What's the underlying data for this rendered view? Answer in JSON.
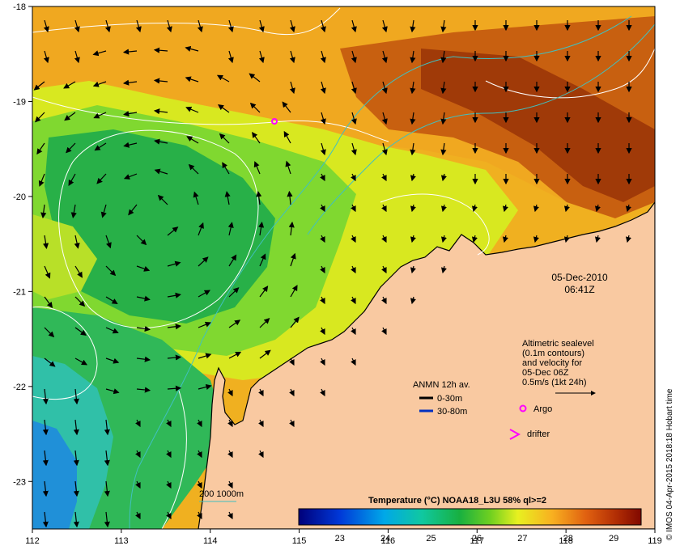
{
  "map": {
    "lon_ticks": [
      "112",
      "113",
      "114",
      "115",
      "116",
      "117",
      "118",
      "119"
    ],
    "lat_ticks": [
      "-18",
      "-19",
      "-20",
      "-21",
      "-22",
      "-23"
    ],
    "lon_range": [
      112,
      119
    ],
    "lat_range": [
      -23.5,
      -18
    ],
    "colors": {
      "land": "#f9c9a1",
      "coast": "#000000",
      "sealevel_contour": "#ffffff",
      "isobath": "#40c0c0"
    }
  },
  "datetime": {
    "date": "05-Dec-2010",
    "time": "06:41Z"
  },
  "altimetric": {
    "line1": "Altimetric sealevel",
    "line2": "(0.1m contours)",
    "line3": "and velocity for",
    "line4": "05-Dec 06Z",
    "line5": "0.5m/s (1kt 24h)"
  },
  "anmn": {
    "title": "ANMN 12h av.",
    "item1": "0-30m",
    "item2": "30-80m",
    "item1_color": "#000000",
    "item2_color": "#0030c0"
  },
  "argo": {
    "label": "Argo",
    "color": "#ff00ff"
  },
  "drifter": {
    "label": "drifter",
    "color": "#ff00ff"
  },
  "isobath_legend": "200  1000m",
  "colorbar": {
    "title": "Temperature (°C) NOAA18_L3U 58% ql>=2",
    "ticks": [
      "23",
      "24",
      "25",
      "26",
      "27",
      "28",
      "29"
    ],
    "range": [
      22.1,
      29.6
    ]
  },
  "credit": "© IMOS 04-Apr-2015 2018:18 Hobart time"
}
